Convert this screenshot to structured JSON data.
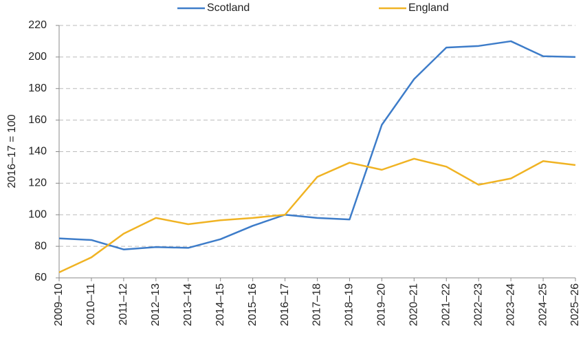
{
  "chart_data": {
    "type": "line",
    "y_label": "2016–17 = 100",
    "categories": [
      "2009–10",
      "2010–11",
      "2011–12",
      "2012–13",
      "2013–14",
      "2014–15",
      "2015–16",
      "2016–17",
      "2017–18",
      "2018–19",
      "2019–20",
      "2020–21",
      "2021–22",
      "2022–23",
      "2023–24",
      "2024–25",
      "2025–26"
    ],
    "series": [
      {
        "name": "Scotland",
        "color": "#3d7cc9",
        "values": [
          85,
          84,
          78,
          79.5,
          79,
          84.5,
          93,
          100,
          98,
          97,
          157,
          186,
          206,
          207,
          210,
          200.5,
          200
        ]
      },
      {
        "name": "England",
        "color": "#f0b323",
        "values": [
          63.5,
          73,
          88,
          98,
          94,
          96.5,
          98,
          100,
          124,
          133,
          128.5,
          135.5,
          130.5,
          119,
          123,
          134,
          131.5
        ]
      }
    ],
    "ylim": [
      60,
      220
    ],
    "yticks": [
      60,
      80,
      100,
      120,
      140,
      160,
      180,
      200,
      220
    ],
    "grid": true,
    "legend": "top"
  }
}
